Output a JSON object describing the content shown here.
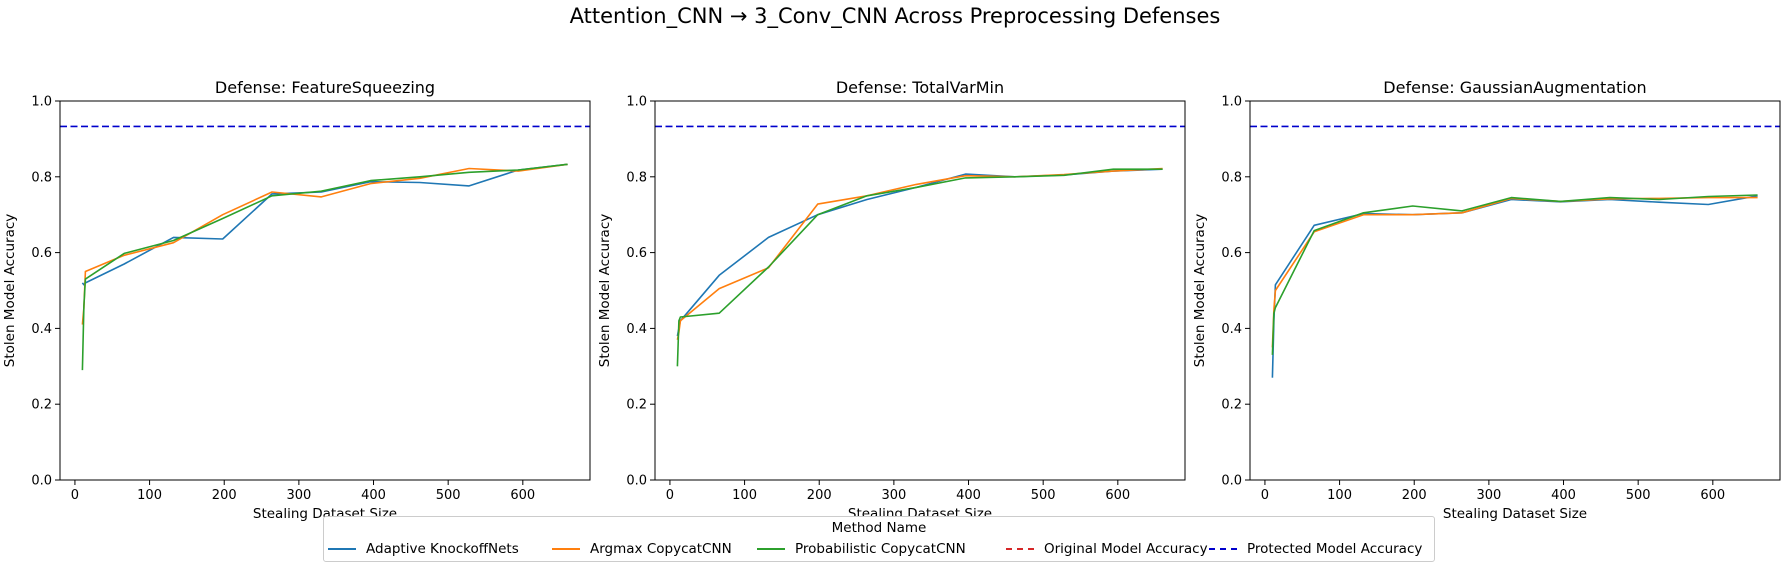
{
  "suptitle": "Attention_CNN → 3_Conv_CNN Across Preprocessing Defenses",
  "colors": {
    "Adaptive KnockoffNets": "#1f77b4",
    "Argmax CopycatCNN": "#ff7f0e",
    "Probabilistic CopycatCNN": "#2ca02c",
    "Original Model Accuracy": "#d62728",
    "Protected Model Accuracy": "#0000cc"
  },
  "legend": {
    "title": "Method Name",
    "items": [
      {
        "label": "Adaptive KnockoffNets",
        "style": "solid"
      },
      {
        "label": "Argmax CopycatCNN",
        "style": "solid"
      },
      {
        "label": "Probabilistic CopycatCNN",
        "style": "solid"
      },
      {
        "label": "Original Model Accuracy",
        "style": "dashed"
      },
      {
        "label": "Protected Model Accuracy",
        "style": "dashed"
      }
    ]
  },
  "chart_data": [
    {
      "type": "line",
      "title": "Defense: FeatureSqueezing",
      "xlabel": "Stealing Dataset Size",
      "ylabel": "Stolen Model Accuracy",
      "xlim": [
        -20,
        690
      ],
      "ylim": [
        0,
        1.0
      ],
      "xticks": [
        0,
        100,
        200,
        300,
        400,
        500,
        600
      ],
      "yticks": [
        0.0,
        0.2,
        0.4,
        0.6,
        0.8,
        1.0
      ],
      "protected_accuracy": 0.933,
      "series": [
        {
          "name": "Adaptive KnockoffNets",
          "x": [
            10,
            12,
            14,
            66,
            132,
            198,
            264,
            330,
            396,
            462,
            528,
            594,
            660
          ],
          "y": [
            0.52,
            0.515,
            0.52,
            0.57,
            0.64,
            0.636,
            0.755,
            0.76,
            0.787,
            0.785,
            0.776,
            0.818,
            0.833
          ]
        },
        {
          "name": "Argmax CopycatCNN",
          "x": [
            10,
            12,
            14,
            66,
            132,
            198,
            264,
            330,
            396,
            462,
            528,
            594,
            660
          ],
          "y": [
            0.41,
            0.455,
            0.55,
            0.593,
            0.626,
            0.7,
            0.76,
            0.747,
            0.782,
            0.796,
            0.822,
            0.815,
            0.833
          ]
        },
        {
          "name": "Probabilistic CopycatCNN",
          "x": [
            10,
            12,
            14,
            66,
            132,
            198,
            264,
            330,
            396,
            462,
            528,
            594,
            660
          ],
          "y": [
            0.29,
            0.46,
            0.53,
            0.598,
            0.632,
            0.69,
            0.75,
            0.762,
            0.79,
            0.8,
            0.812,
            0.818,
            0.833
          ]
        }
      ]
    },
    {
      "type": "line",
      "title": "Defense: TotalVarMin",
      "xlabel": "Stealing Dataset Size",
      "ylabel": "Stolen Model Accuracy",
      "xlim": [
        -20,
        690
      ],
      "ylim": [
        0,
        1.0
      ],
      "xticks": [
        0,
        100,
        200,
        300,
        400,
        500,
        600
      ],
      "yticks": [
        0.0,
        0.2,
        0.4,
        0.6,
        0.8,
        1.0
      ],
      "protected_accuracy": 0.933,
      "series": [
        {
          "name": "Adaptive KnockoffNets",
          "x": [
            10,
            12,
            14,
            66,
            132,
            198,
            264,
            330,
            396,
            462,
            528,
            594,
            660
          ],
          "y": [
            0.38,
            0.4,
            0.42,
            0.54,
            0.64,
            0.7,
            0.74,
            0.772,
            0.807,
            0.8,
            0.805,
            0.815,
            0.82
          ]
        },
        {
          "name": "Argmax CopycatCNN",
          "x": [
            10,
            12,
            14,
            66,
            132,
            198,
            264,
            330,
            396,
            462,
            528,
            594,
            660
          ],
          "y": [
            0.37,
            0.39,
            0.42,
            0.505,
            0.56,
            0.728,
            0.75,
            0.78,
            0.803,
            0.8,
            0.806,
            0.815,
            0.822
          ]
        },
        {
          "name": "Probabilistic CopycatCNN",
          "x": [
            10,
            12,
            14,
            66,
            132,
            198,
            264,
            330,
            396,
            462,
            528,
            594,
            660
          ],
          "y": [
            0.3,
            0.42,
            0.43,
            0.44,
            0.562,
            0.7,
            0.75,
            0.772,
            0.797,
            0.8,
            0.804,
            0.82,
            0.82
          ]
        }
      ]
    },
    {
      "type": "line",
      "title": "Defense: GaussianAugmentation",
      "xlabel": "Stealing Dataset Size",
      "ylabel": "Stolen Model Accuracy",
      "xlim": [
        -20,
        690
      ],
      "ylim": [
        0,
        1.0
      ],
      "xticks": [
        0,
        100,
        200,
        300,
        400,
        500,
        600
      ],
      "yticks": [
        0.0,
        0.2,
        0.4,
        0.6,
        0.8,
        1.0
      ],
      "protected_accuracy": 0.933,
      "series": [
        {
          "name": "Adaptive KnockoffNets",
          "x": [
            10,
            12,
            14,
            66,
            132,
            198,
            264,
            330,
            396,
            462,
            528,
            594,
            660
          ],
          "y": [
            0.27,
            0.42,
            0.515,
            0.672,
            0.703,
            0.7,
            0.705,
            0.74,
            0.734,
            0.74,
            0.733,
            0.727,
            0.75
          ]
        },
        {
          "name": "Argmax CopycatCNN",
          "x": [
            10,
            12,
            14,
            66,
            132,
            198,
            264,
            330,
            396,
            462,
            528,
            594,
            660
          ],
          "y": [
            0.35,
            0.45,
            0.5,
            0.655,
            0.7,
            0.7,
            0.705,
            0.743,
            0.735,
            0.742,
            0.743,
            0.745,
            0.745
          ]
        },
        {
          "name": "Probabilistic CopycatCNN",
          "x": [
            10,
            12,
            14,
            66,
            132,
            198,
            264,
            330,
            396,
            462,
            528,
            594,
            660
          ],
          "y": [
            0.33,
            0.44,
            0.455,
            0.658,
            0.705,
            0.723,
            0.71,
            0.745,
            0.735,
            0.745,
            0.74,
            0.748,
            0.752
          ]
        }
      ]
    }
  ]
}
